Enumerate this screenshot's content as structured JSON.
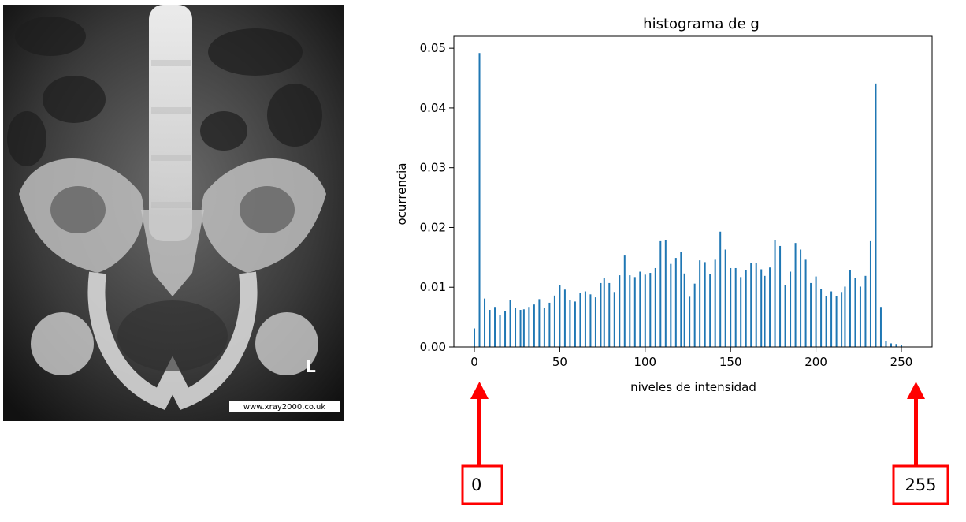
{
  "xray": {
    "side_marker": "L",
    "watermark": "www.xray2000.co.uk"
  },
  "chart_data": {
    "type": "bar",
    "title": "histograma de g",
    "xlabel": "niveles de intensidad",
    "ylabel": "ocurrencia",
    "xlim": [
      -12,
      268
    ],
    "ylim": [
      0,
      0.052
    ],
    "xticks": [
      0,
      50,
      100,
      150,
      200,
      250
    ],
    "yticks": [
      "0.00",
      "0.01",
      "0.02",
      "0.03",
      "0.04",
      "0.05"
    ],
    "bar_color": "#1f77b4",
    "grid": false,
    "x": [
      0,
      3,
      6,
      9,
      12,
      15,
      18,
      21,
      24,
      27,
      29,
      32,
      35,
      38,
      41,
      44,
      47,
      50,
      53,
      56,
      59,
      62,
      65,
      68,
      71,
      74,
      76,
      79,
      82,
      85,
      88,
      91,
      94,
      97,
      100,
      103,
      106,
      109,
      112,
      115,
      118,
      121,
      123,
      126,
      129,
      132,
      135,
      138,
      141,
      144,
      147,
      150,
      153,
      156,
      159,
      162,
      165,
      168,
      170,
      173,
      176,
      179,
      182,
      185,
      188,
      191,
      194,
      197,
      200,
      203,
      206,
      209,
      212,
      215,
      217,
      220,
      223,
      226,
      229,
      232,
      235,
      238,
      241,
      244,
      247,
      250
    ],
    "values": [
      0.0031,
      0.0492,
      0.0081,
      0.0062,
      0.0067,
      0.0053,
      0.006,
      0.0079,
      0.0066,
      0.0062,
      0.0063,
      0.0067,
      0.0071,
      0.008,
      0.0066,
      0.0074,
      0.0086,
      0.0104,
      0.0096,
      0.0079,
      0.0076,
      0.0091,
      0.0093,
      0.0088,
      0.0083,
      0.0107,
      0.0115,
      0.0107,
      0.0092,
      0.012,
      0.0153,
      0.012,
      0.0117,
      0.0126,
      0.0121,
      0.0124,
      0.0132,
      0.0177,
      0.0179,
      0.0139,
      0.0149,
      0.0159,
      0.0123,
      0.0084,
      0.0106,
      0.0145,
      0.0142,
      0.0122,
      0.0146,
      0.0193,
      0.0163,
      0.0132,
      0.0132,
      0.0117,
      0.0129,
      0.014,
      0.0141,
      0.013,
      0.0119,
      0.0133,
      0.0179,
      0.0169,
      0.0104,
      0.0126,
      0.0174,
      0.0163,
      0.0146,
      0.0107,
      0.0118,
      0.0097,
      0.0085,
      0.0093,
      0.0085,
      0.0092,
      0.0101,
      0.0129,
      0.0116,
      0.0101,
      0.0119,
      0.0177,
      0.0441,
      0.0067,
      0.001,
      0.0006,
      0.0005,
      0.0003
    ]
  },
  "annotations": {
    "left_label": "0",
    "right_label": "255",
    "color": "#ff0000"
  }
}
